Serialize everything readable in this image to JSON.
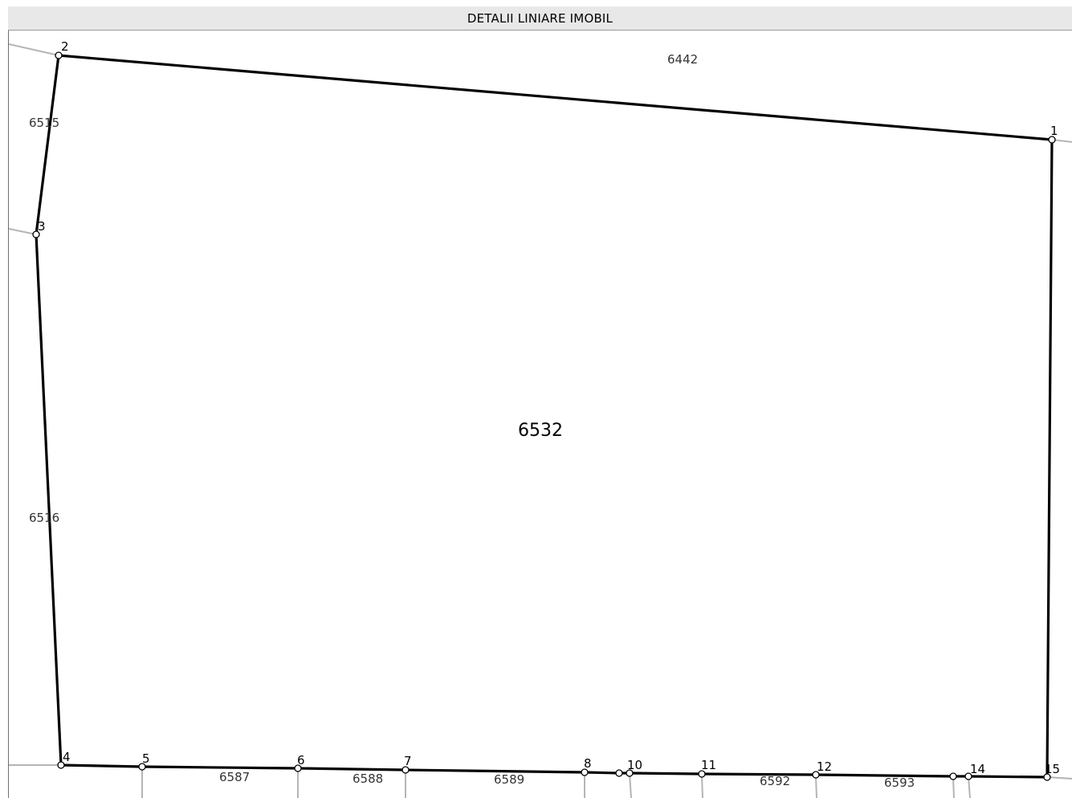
{
  "title": "DETALII LINIARE IMOBIL",
  "main_parcel": "6532",
  "neighbor_parcels": [
    "6442",
    "6515",
    "6516",
    "6587",
    "6588",
    "6589",
    "6592",
    "6593"
  ],
  "vertices": [
    "1",
    "2",
    "3",
    "4",
    "5",
    "6",
    "7",
    "8",
    "10",
    "11",
    "12",
    "14",
    "15"
  ],
  "colors": {
    "boundary": "#000000",
    "neighbor_lines": "#b5b5b5",
    "title_bg": "#e8e8e8"
  }
}
